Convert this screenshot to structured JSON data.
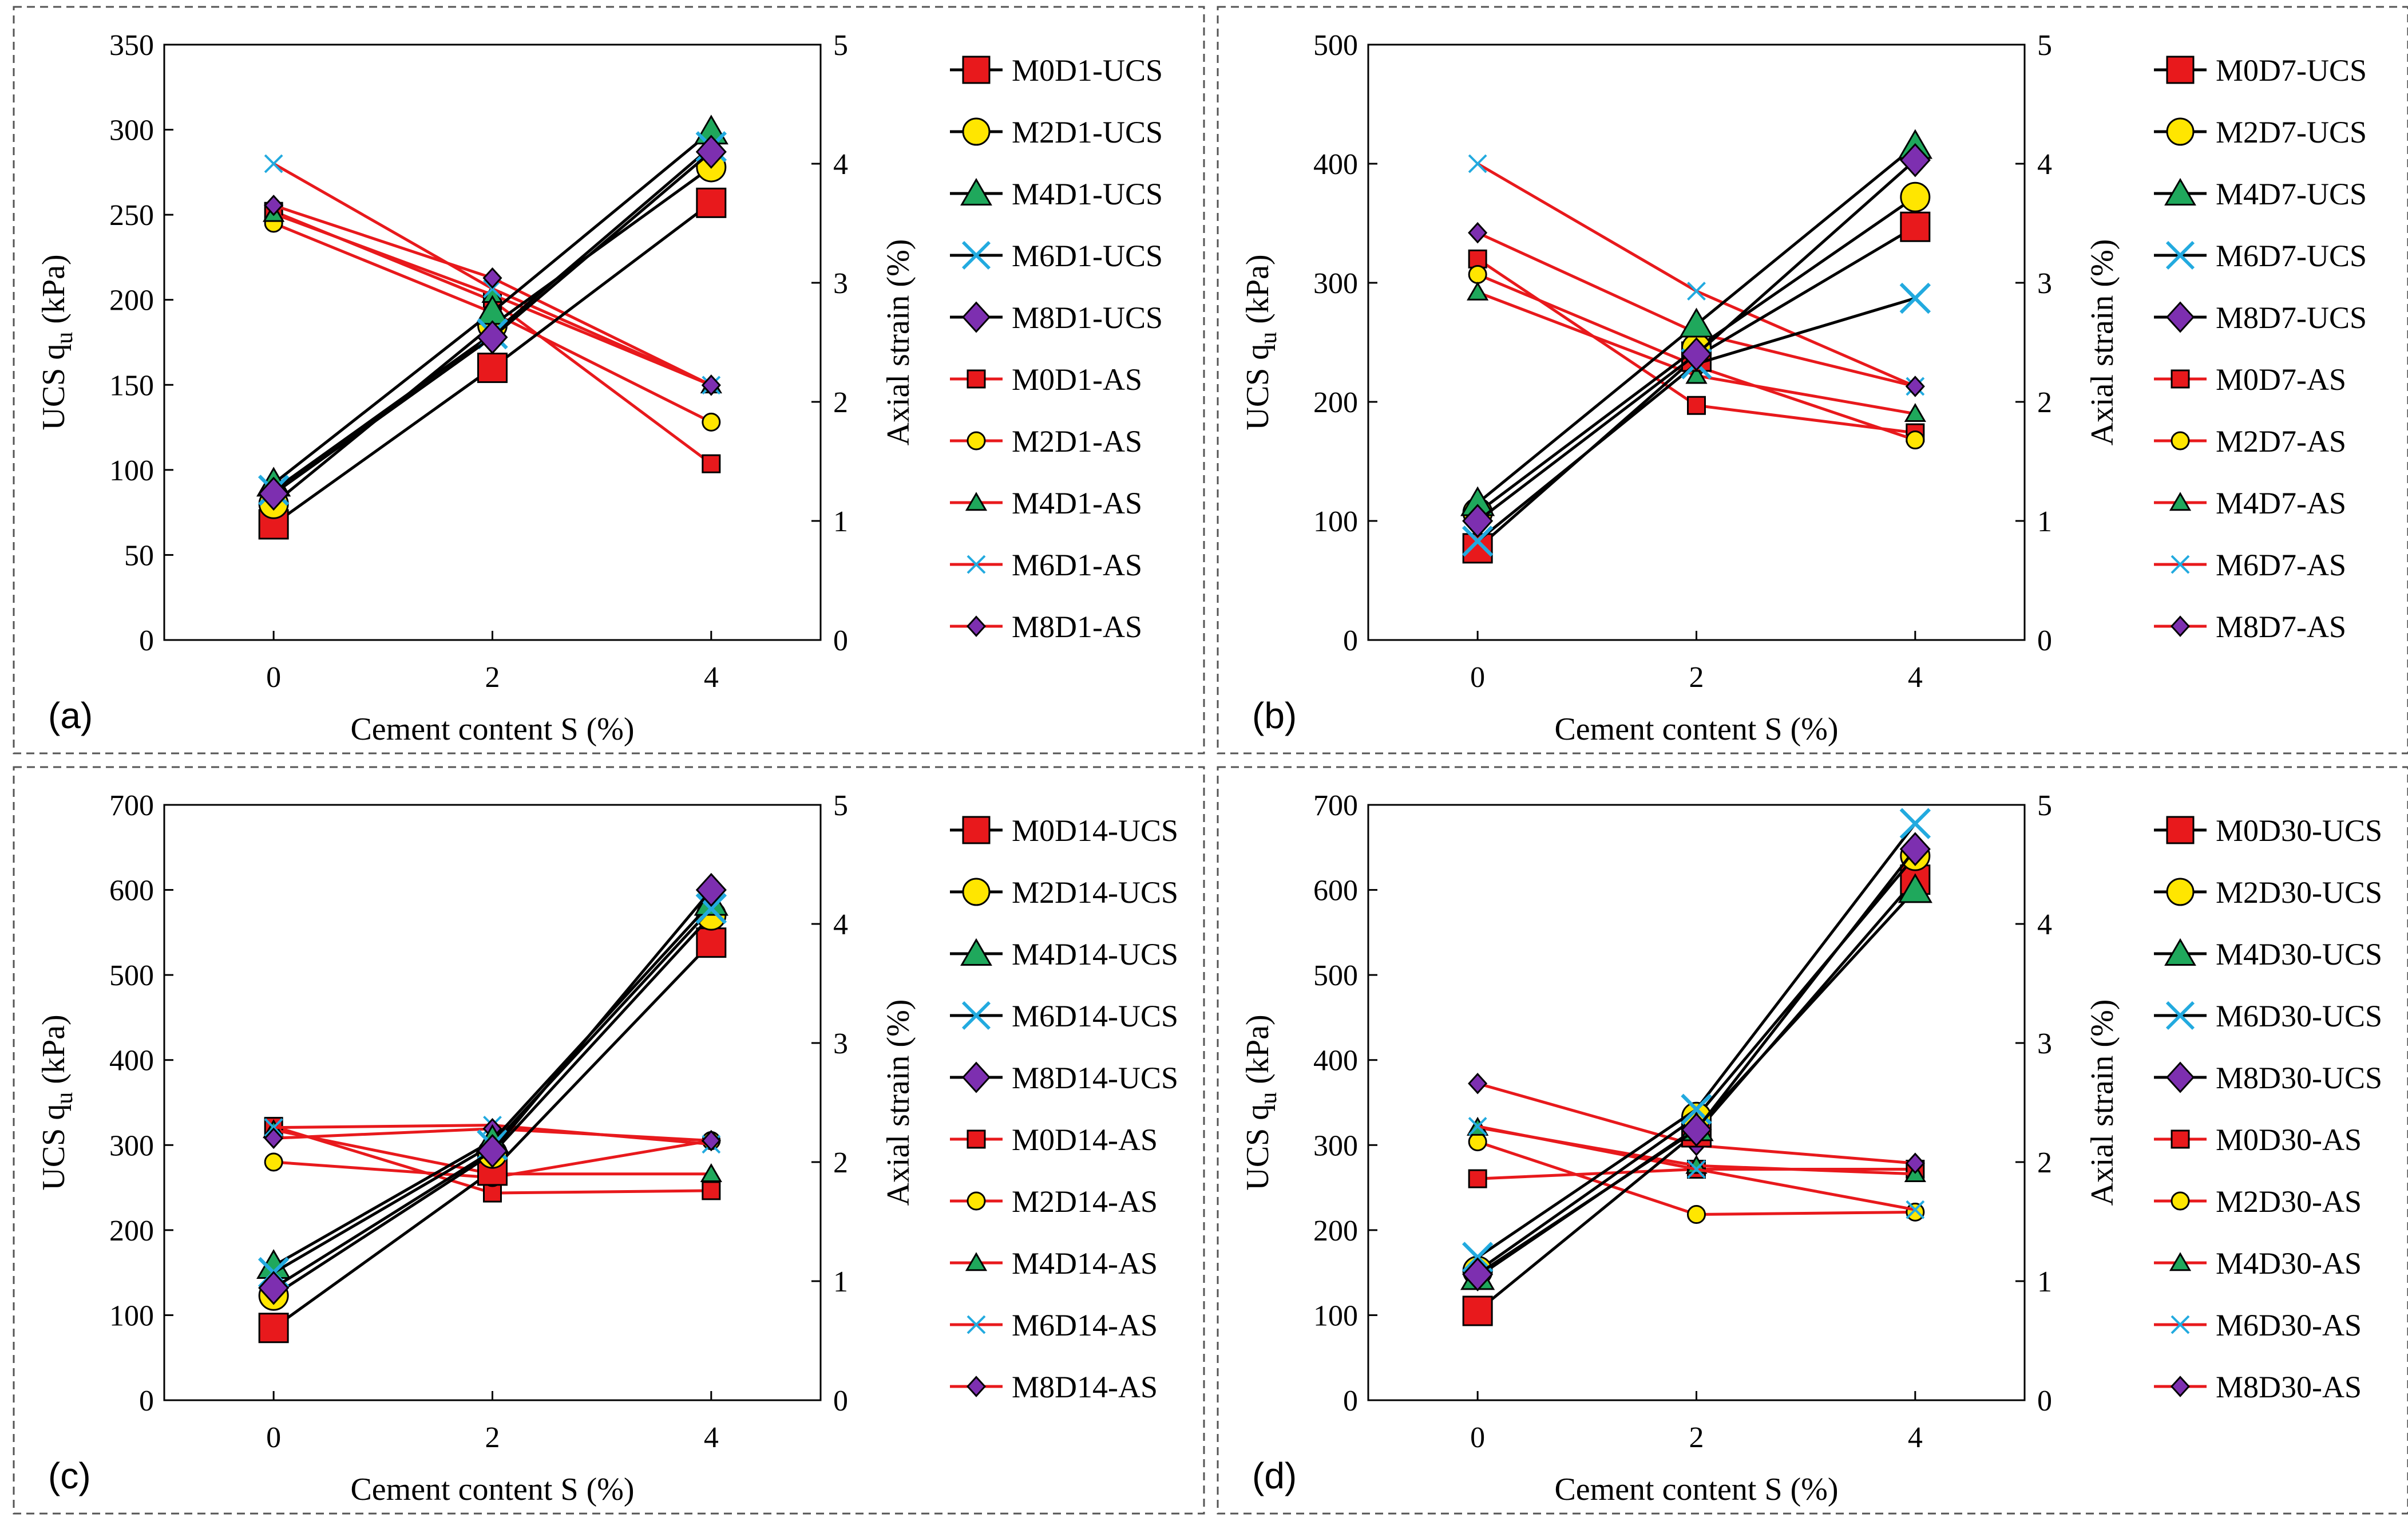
{
  "figure": {
    "colors": {
      "ucs_line": "#000000",
      "as_line": "#e8191c",
      "red": "#e8191c",
      "yellow": "#ffe600",
      "green": "#1fa85c",
      "cyan": "#22aadf",
      "purple": "#7d2fb0"
    }
  },
  "chart_data": [
    {
      "type": "line",
      "panel_label": "(a)",
      "xlabel": "Cement content S (%)",
      "ylabel": "UCS qu (kPa)",
      "ylabel_parts": [
        "UCS q",
        "u",
        " (kPa)"
      ],
      "y2label": "Axial strain (%)",
      "categories": [
        "0",
        "2",
        "4"
      ],
      "x": [
        0,
        2,
        4
      ],
      "xlim": [
        -1,
        5
      ],
      "ylim": [
        0,
        350
      ],
      "yticks": [
        0,
        50,
        100,
        150,
        200,
        250,
        300,
        350
      ],
      "y2lim": [
        0,
        5
      ],
      "y2ticks": [
        0,
        1,
        2,
        3,
        4,
        5
      ],
      "series": [
        {
          "name": "M0D1-UCS",
          "axis": "left",
          "marker": "square",
          "color": "red",
          "values": [
            68,
            160,
            257
          ]
        },
        {
          "name": "M2D1-UCS",
          "axis": "left",
          "marker": "circle",
          "color": "yellow",
          "values": [
            80,
            185,
            278
          ]
        },
        {
          "name": "M4D1-UCS",
          "axis": "left",
          "marker": "triangle",
          "color": "green",
          "values": [
            92,
            193,
            299
          ]
        },
        {
          "name": "M6D1-UCS",
          "axis": "left",
          "marker": "x",
          "color": "cyan",
          "values": [
            88,
            180,
            290
          ]
        },
        {
          "name": "M8D1-UCS",
          "axis": "left",
          "marker": "diamond",
          "color": "purple",
          "values": [
            86,
            178,
            287
          ]
        },
        {
          "name": "M0D1-AS",
          "axis": "right",
          "marker": "square",
          "color": "red",
          "values": [
            3.6,
            2.85,
            1.48
          ]
        },
        {
          "name": "M2D1-AS",
          "axis": "right",
          "marker": "circle",
          "color": "yellow",
          "values": [
            3.5,
            2.75,
            1.83
          ]
        },
        {
          "name": "M4D1-AS",
          "axis": "right",
          "marker": "triangle",
          "color": "green",
          "values": [
            3.58,
            2.9,
            2.14
          ]
        },
        {
          "name": "M6D1-AS",
          "axis": "right",
          "marker": "x",
          "color": "cyan",
          "values": [
            4.0,
            2.95,
            2.14
          ]
        },
        {
          "name": "M8D1-AS",
          "axis": "right",
          "marker": "diamond",
          "color": "purple",
          "values": [
            3.65,
            3.04,
            2.14
          ]
        }
      ]
    },
    {
      "type": "line",
      "panel_label": "(b)",
      "xlabel": "Cement content S (%)",
      "ylabel": "UCS qu (kPa)",
      "ylabel_parts": [
        "UCS q",
        "u",
        " (kPa)"
      ],
      "y2label": "Axial strain (%)",
      "categories": [
        "0",
        "2",
        "4"
      ],
      "x": [
        0,
        2,
        4
      ],
      "xlim": [
        -1,
        5
      ],
      "ylim": [
        0,
        500
      ],
      "yticks": [
        0,
        100,
        200,
        300,
        400,
        500
      ],
      "y2lim": [
        0,
        5
      ],
      "y2ticks": [
        0,
        1,
        2,
        3,
        4,
        5
      ],
      "series": [
        {
          "name": "M0D7-UCS",
          "axis": "left",
          "marker": "square",
          "color": "red",
          "values": [
            77,
            238,
            347
          ]
        },
        {
          "name": "M2D7-UCS",
          "axis": "left",
          "marker": "circle",
          "color": "yellow",
          "values": [
            107,
            245,
            372
          ]
        },
        {
          "name": "M4D7-UCS",
          "axis": "left",
          "marker": "triangle",
          "color": "green",
          "values": [
            115,
            265,
            415
          ]
        },
        {
          "name": "M6D7-UCS",
          "axis": "left",
          "marker": "x",
          "color": "cyan",
          "values": [
            83,
            232,
            287
          ]
        },
        {
          "name": "M8D7-UCS",
          "axis": "left",
          "marker": "diamond",
          "color": "purple",
          "values": [
            100,
            240,
            403
          ]
        },
        {
          "name": "M0D7-AS",
          "axis": "right",
          "marker": "square",
          "color": "red",
          "values": [
            3.2,
            1.97,
            1.74
          ]
        },
        {
          "name": "M2D7-AS",
          "axis": "right",
          "marker": "circle",
          "color": "yellow",
          "values": [
            3.07,
            2.3,
            1.68
          ]
        },
        {
          "name": "M4D7-AS",
          "axis": "right",
          "marker": "triangle",
          "color": "green",
          "values": [
            2.92,
            2.22,
            1.9
          ]
        },
        {
          "name": "M6D7-AS",
          "axis": "right",
          "marker": "x",
          "color": "cyan",
          "values": [
            4.0,
            2.93,
            2.13
          ]
        },
        {
          "name": "M8D7-AS",
          "axis": "right",
          "marker": "diamond",
          "color": "purple",
          "values": [
            3.42,
            2.58,
            2.13
          ]
        }
      ]
    },
    {
      "type": "line",
      "panel_label": "(c)",
      "xlabel": "Cement content S (%)",
      "ylabel": "UCS qu (kPa)",
      "ylabel_parts": [
        "UCS q",
        "u",
        " (kPa)"
      ],
      "y2label": "Axial strain (%)",
      "categories": [
        "0",
        "2",
        "4"
      ],
      "x": [
        0,
        2,
        4
      ],
      "xlim": [
        -1,
        5
      ],
      "ylim": [
        0,
        700
      ],
      "yticks": [
        0,
        100,
        200,
        300,
        400,
        500,
        600,
        700
      ],
      "y2lim": [
        0,
        5
      ],
      "y2ticks": [
        0,
        1,
        2,
        3,
        4,
        5
      ],
      "series": [
        {
          "name": "M0D14-UCS",
          "axis": "left",
          "marker": "square",
          "color": "red",
          "values": [
            85,
            270,
            538
          ]
        },
        {
          "name": "M2D14-UCS",
          "axis": "left",
          "marker": "circle",
          "color": "yellow",
          "values": [
            123,
            290,
            570
          ]
        },
        {
          "name": "M4D14-UCS",
          "axis": "left",
          "marker": "triangle",
          "color": "green",
          "values": [
            158,
            305,
            585
          ]
        },
        {
          "name": "M6D14-UCS",
          "axis": "left",
          "marker": "x",
          "color": "cyan",
          "values": [
            150,
            300,
            578
          ]
        },
        {
          "name": "M8D14-UCS",
          "axis": "left",
          "marker": "diamond",
          "color": "purple",
          "values": [
            132,
            293,
            600
          ]
        },
        {
          "name": "M0D14-AS",
          "axis": "right",
          "marker": "square",
          "color": "red",
          "values": [
            2.3,
            1.74,
            1.76
          ]
        },
        {
          "name": "M2D14-AS",
          "axis": "right",
          "marker": "circle",
          "color": "yellow",
          "values": [
            2.0,
            1.87,
            2.18
          ]
        },
        {
          "name": "M4D14-AS",
          "axis": "right",
          "marker": "triangle",
          "color": "green",
          "values": [
            2.27,
            1.9,
            1.9
          ]
        },
        {
          "name": "M6D14-AS",
          "axis": "right",
          "marker": "x",
          "color": "cyan",
          "values": [
            2.29,
            2.31,
            2.15
          ]
        },
        {
          "name": "M8D14-AS",
          "axis": "right",
          "marker": "diamond",
          "color": "purple",
          "values": [
            2.2,
            2.28,
            2.18
          ]
        }
      ]
    },
    {
      "type": "line",
      "panel_label": "(d)",
      "xlabel": "Cement content S (%)",
      "ylabel": "UCS qu (kPa)",
      "ylabel_parts": [
        "UCS q",
        "u",
        " (kPa)"
      ],
      "y2label": "Axial strain (%)",
      "categories": [
        "0",
        "2",
        "4"
      ],
      "x": [
        0,
        2,
        4
      ],
      "xlim": [
        -1,
        5
      ],
      "ylim": [
        0,
        700
      ],
      "yticks": [
        0,
        100,
        200,
        300,
        400,
        500,
        600,
        700
      ],
      "y2lim": [
        0,
        5
      ],
      "y2ticks": [
        0,
        1,
        2,
        3,
        4,
        5
      ],
      "series": [
        {
          "name": "M0D30-UCS",
          "axis": "left",
          "marker": "square",
          "color": "red",
          "values": [
            105,
            315,
            612
          ]
        },
        {
          "name": "M2D30-UCS",
          "axis": "left",
          "marker": "circle",
          "color": "yellow",
          "values": [
            152,
            333,
            640
          ]
        },
        {
          "name": "M4D30-UCS",
          "axis": "left",
          "marker": "triangle",
          "color": "green",
          "values": [
            145,
            320,
            600
          ]
        },
        {
          "name": "M6D30-UCS",
          "axis": "left",
          "marker": "x",
          "color": "cyan",
          "values": [
            168,
            342,
            678
          ]
        },
        {
          "name": "M8D30-UCS",
          "axis": "left",
          "marker": "diamond",
          "color": "purple",
          "values": [
            148,
            318,
            648
          ]
        },
        {
          "name": "M0D30-AS",
          "axis": "right",
          "marker": "square",
          "color": "red",
          "values": [
            1.86,
            1.94,
            1.94
          ]
        },
        {
          "name": "M2D30-AS",
          "axis": "right",
          "marker": "circle",
          "color": "yellow",
          "values": [
            2.17,
            1.56,
            1.58
          ]
        },
        {
          "name": "M4D30-AS",
          "axis": "right",
          "marker": "triangle",
          "color": "green",
          "values": [
            2.29,
            1.97,
            1.9
          ]
        },
        {
          "name": "M6D30-AS",
          "axis": "right",
          "marker": "x",
          "color": "cyan",
          "values": [
            2.3,
            1.94,
            1.6
          ]
        },
        {
          "name": "M8D30-AS",
          "axis": "right",
          "marker": "diamond",
          "color": "purple",
          "values": [
            2.66,
            2.14,
            1.99
          ]
        }
      ]
    }
  ]
}
